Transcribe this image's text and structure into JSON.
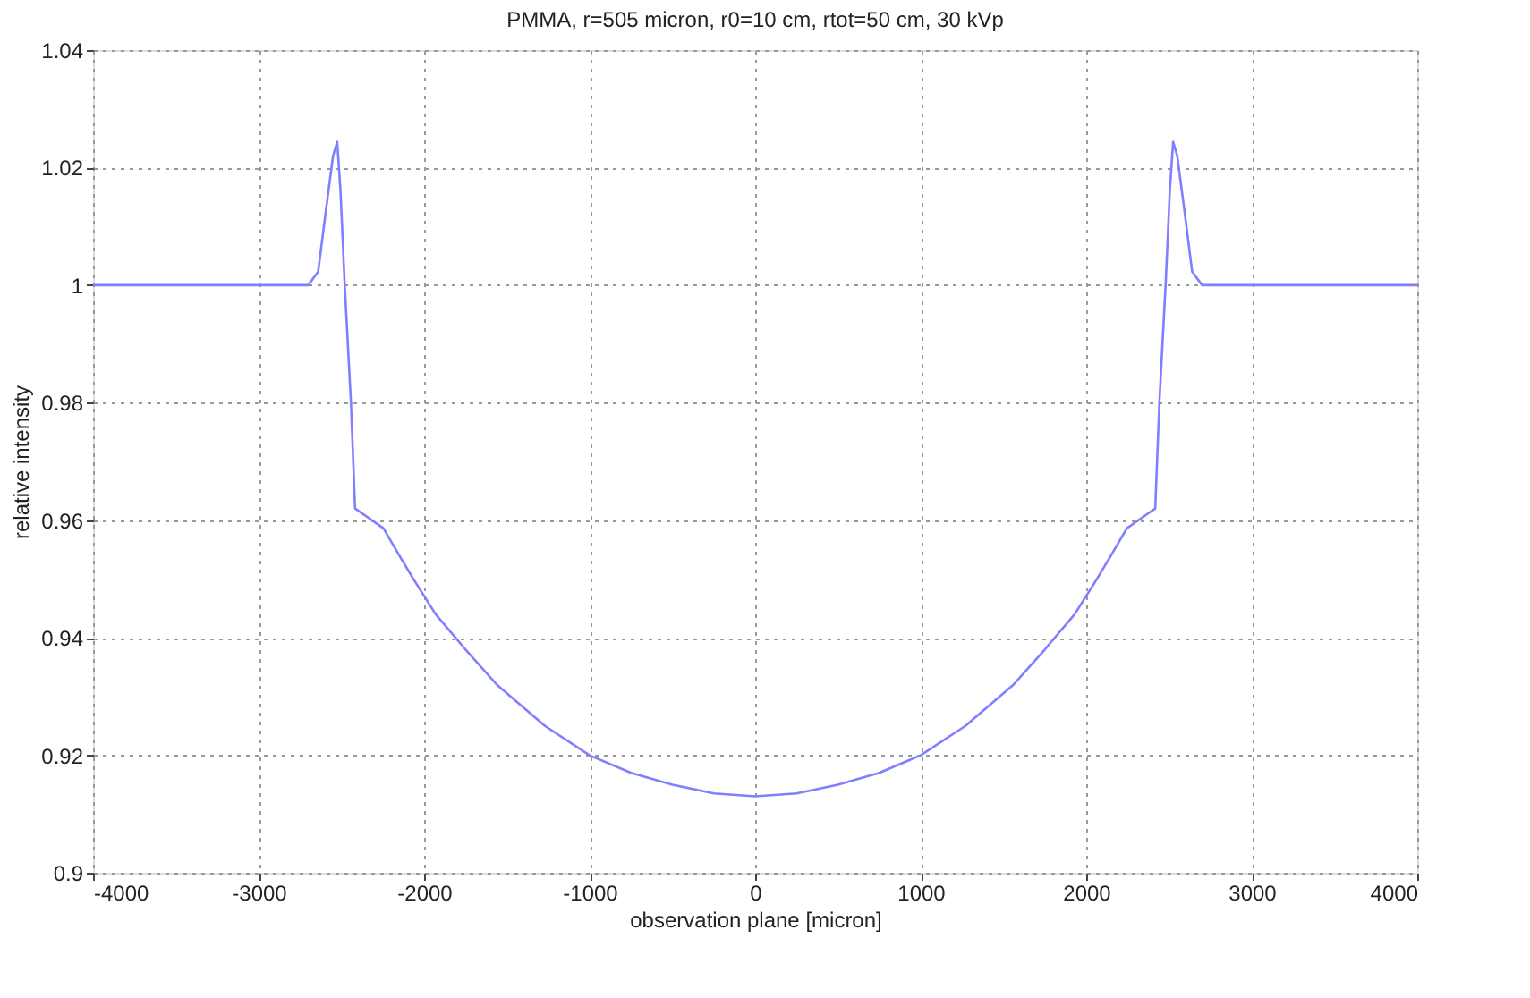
{
  "chart_data": {
    "type": "line",
    "title": "PMMA, r=505 micron, r0=10 cm, rtot=50 cm, 30 kVp",
    "xlabel": "observation plane [micron]",
    "ylabel": "relative intensity",
    "series": [
      {
        "color": "#7f7fff",
        "x": [
          -4000,
          -2700,
          -2640,
          -2590,
          -2550,
          -2525,
          -2505,
          -2480,
          -2442,
          -2417,
          -2371,
          -2245,
          -2150,
          -2065,
          -1930,
          -1750,
          -1560,
          -1270,
          -1000,
          -750,
          -500,
          -250,
          0,
          250,
          500,
          750,
          1000,
          1270,
          1560,
          1750,
          1930,
          2065,
          2150,
          2245,
          2371,
          2417,
          2442,
          2480,
          2505,
          2525,
          2550,
          2590,
          2640,
          2700,
          4000
        ],
        "values": [
          1.0,
          1.0,
          1.0023,
          1.0134,
          1.022,
          1.0244,
          1.016,
          1.0003,
          0.98,
          0.962,
          0.9611,
          0.9586,
          0.954,
          0.95,
          0.944,
          0.938,
          0.932,
          0.925,
          0.92,
          0.917,
          0.915,
          0.9135,
          0.913,
          0.9135,
          0.915,
          0.917,
          0.92,
          0.925,
          0.932,
          0.938,
          0.944,
          0.95,
          0.954,
          0.9586,
          0.9611,
          0.962,
          0.98,
          1.0003,
          1.016,
          1.0244,
          1.022,
          1.0134,
          1.0023,
          1.0,
          1.0
        ]
      }
    ],
    "xlim": [
      -4000,
      4000
    ],
    "xticks": [
      -4000,
      -3000,
      -2000,
      -1000,
      0,
      1000,
      2000,
      3000,
      4000
    ],
    "ylim": [
      0.9,
      1.04
    ],
    "yticks": [
      0.9,
      0.92,
      0.94,
      0.96,
      0.98,
      1,
      1.02,
      1.04
    ],
    "grid": true,
    "line_style": "solid",
    "marker": "none",
    "legend": false
  }
}
